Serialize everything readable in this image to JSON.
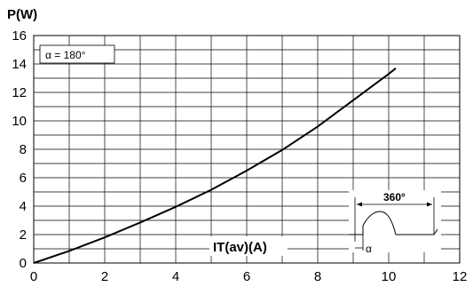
{
  "chart_data": {
    "type": "line",
    "ylabel": "P(W)",
    "xlabel": "IT(av)(A)",
    "xlim": [
      0,
      12
    ],
    "ylim": [
      0,
      16
    ],
    "x_ticks": [
      "0",
      "2",
      "4",
      "6",
      "8",
      "10",
      "12"
    ],
    "y_ticks": [
      "0",
      "2",
      "4",
      "6",
      "8",
      "10",
      "12",
      "14",
      "16"
    ],
    "grid": true,
    "annotation": "α = 180°",
    "series": [
      {
        "x": [
          0,
          1,
          2,
          3,
          4,
          5,
          6,
          7,
          8,
          9,
          10,
          10.2
        ],
        "y": [
          0,
          0.85,
          1.8,
          2.85,
          3.95,
          5.15,
          6.5,
          7.95,
          9.6,
          11.45,
          13.3,
          13.7
        ]
      }
    ],
    "inset": {
      "period_label": "360°",
      "angle_label": "α"
    }
  }
}
